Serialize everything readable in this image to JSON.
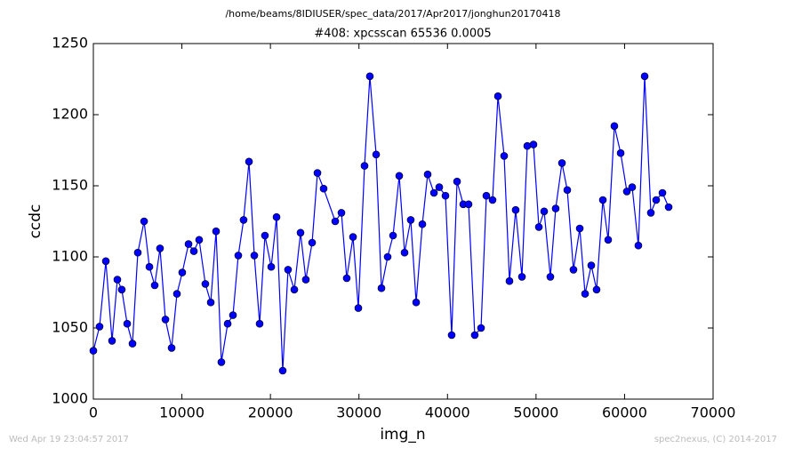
{
  "chart_data": {
    "type": "line",
    "suptitle": "/home/beams/8IDIUSER/spec_data/2017/Apr2017/jonghun20170418",
    "title": "#408: xpcsscan 65536 0.0005",
    "xlabel": "img_n",
    "ylabel": "ccdc",
    "footer_left": "Wed Apr 19 23:04:57 2017",
    "footer_right": "spec2nexus, (C) 2014-2017",
    "xlim": [
      0,
      70000
    ],
    "xticks": [
      0,
      10000,
      20000,
      30000,
      40000,
      50000,
      60000,
      70000
    ],
    "ylim": [
      1000,
      1250
    ],
    "yticks": [
      1000,
      1050,
      1100,
      1150,
      1200,
      1250
    ],
    "grid": false,
    "series": [
      {
        "color": "#0000ff",
        "x": [
          0,
          700,
          1410,
          2110,
          2710,
          3210,
          3820,
          4420,
          5020,
          5730,
          6330,
          6930,
          7530,
          8140,
          8840,
          9440,
          10040,
          10750,
          11350,
          11950,
          12650,
          13260,
          13860,
          14460,
          15170,
          15770,
          16370,
          16970,
          17580,
          18180,
          18780,
          19380,
          20090,
          20690,
          21390,
          21990,
          22700,
          23400,
          24000,
          24710,
          25310,
          26010,
          27320,
          28020,
          28620,
          29330,
          29930,
          30630,
          31230,
          31940,
          32540,
          33240,
          33850,
          34550,
          35150,
          35850,
          36460,
          37160,
          37760,
          38470,
          39070,
          39770,
          40470,
          41080,
          41780,
          42380,
          43080,
          43790,
          44390,
          45090,
          45700,
          46400,
          47000,
          47700,
          48410,
          49010,
          49710,
          50320,
          50920,
          51620,
          52220,
          52930,
          53530,
          54230,
          54940,
          55540,
          56240,
          56840,
          57550,
          58150,
          58850,
          59560,
          60260,
          60860,
          61560,
          62270,
          62970,
          63570,
          64280,
          64980
        ],
        "values": [
          1034,
          1051,
          1097,
          1041,
          1084,
          1077,
          1053,
          1039,
          1103,
          1125,
          1093,
          1080,
          1106,
          1056,
          1036,
          1074,
          1089,
          1109,
          1104,
          1112,
          1081,
          1068,
          1118,
          1026,
          1053,
          1059,
          1101,
          1126,
          1167,
          1101,
          1053,
          1115,
          1093,
          1128,
          1020,
          1091,
          1077,
          1117,
          1084,
          1110,
          1159,
          1148,
          1125,
          1131,
          1085,
          1114,
          1064,
          1164,
          1227,
          1172,
          1078,
          1100,
          1115,
          1157,
          1103,
          1126,
          1068,
          1123,
          1158,
          1145,
          1149,
          1143,
          1045,
          1153,
          1137,
          1137,
          1045,
          1050,
          1143,
          1140,
          1213,
          1171,
          1083,
          1133,
          1086,
          1178,
          1179,
          1121,
          1132,
          1086,
          1134,
          1166,
          1147,
          1091,
          1120,
          1074,
          1094,
          1077,
          1140,
          1112,
          1192,
          1173,
          1146,
          1149,
          1108,
          1227,
          1131,
          1140,
          1145,
          1135
        ]
      }
    ]
  }
}
